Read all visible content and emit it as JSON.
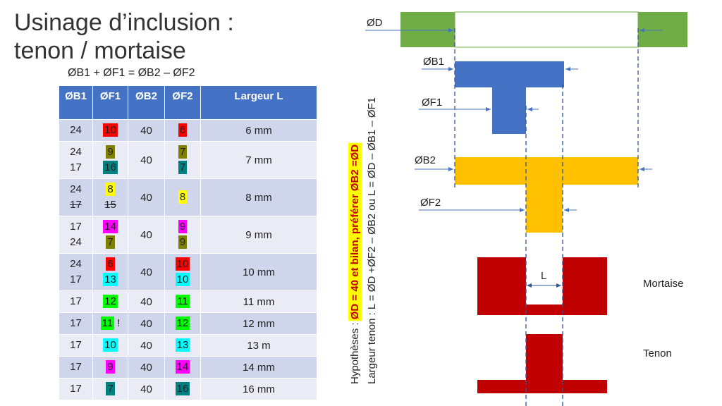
{
  "title": {
    "line1": "Usinage d’inclusion :",
    "line2": "tenon / mortaise"
  },
  "formula": "ØB1 + ØF1 = ØB2 – ØF2",
  "table": {
    "headers": [
      "ØB1",
      "ØF1",
      "ØB2",
      "ØF2",
      "Largeur L"
    ],
    "rows": [
      {
        "b1": [
          "24"
        ],
        "f1": [
          {
            "v": "10",
            "c": "#ff0000"
          }
        ],
        "b2": "40",
        "f2": [
          {
            "v": "6",
            "c": "#ff0000"
          }
        ],
        "l": "6 mm"
      },
      {
        "b1": [
          "24",
          "17"
        ],
        "f1": [
          {
            "v": "9",
            "c": "#808000"
          },
          {
            "v": "16",
            "c": "#008080"
          }
        ],
        "b2": "40",
        "f2": [
          {
            "v": "7",
            "c": "#808000"
          },
          {
            "v": "7",
            "c": "#008080"
          }
        ],
        "l": "7 mm"
      },
      {
        "b1": [
          "24",
          "17"
        ],
        "b1_strike": [
          false,
          true
        ],
        "f1": [
          {
            "v": "8",
            "c": "#ffff00"
          },
          {
            "v": "15",
            "c": "",
            "s": true
          }
        ],
        "b2": "40",
        "f2": [
          {
            "v": "8",
            "c": "#ffff00"
          }
        ],
        "l": "8 mm"
      },
      {
        "b1": [
          "17",
          "24"
        ],
        "f1": [
          {
            "v": "14",
            "c": "#ff00ff"
          },
          {
            "v": "7",
            "c": "#808000"
          }
        ],
        "b2": "40",
        "f2": [
          {
            "v": "9",
            "c": "#ff00ff"
          },
          {
            "v": "9",
            "c": "#808000"
          }
        ],
        "l": "9 mm"
      },
      {
        "b1": [
          "24",
          "17"
        ],
        "f1": [
          {
            "v": "6",
            "c": "#ff0000"
          },
          {
            "v": "13",
            "c": "#00ffff"
          }
        ],
        "b2": "40",
        "f2": [
          {
            "v": "10",
            "c": "#ff0000"
          },
          {
            "v": "10",
            "c": "#00ffff"
          }
        ],
        "l": "10 mm"
      },
      {
        "b1": [
          "17"
        ],
        "f1": [
          {
            "v": "12",
            "c": "#00ff00"
          }
        ],
        "b2": "40",
        "f2": [
          {
            "v": "11",
            "c": "#00ff00"
          }
        ],
        "l": "11 mm"
      },
      {
        "b1": [
          "17"
        ],
        "f1": [
          {
            "v": "11",
            "c": "#00ff00",
            "suffix": " !"
          }
        ],
        "b2": "40",
        "f2": [
          {
            "v": "12",
            "c": "#00ff00"
          }
        ],
        "l": "12 mm"
      },
      {
        "b1": [
          "17"
        ],
        "f1": [
          {
            "v": "10",
            "c": "#00ffff"
          }
        ],
        "b2": "40",
        "f2": [
          {
            "v": "13",
            "c": "#00ffff"
          }
        ],
        "l": "13 m"
      },
      {
        "b1": [
          "17"
        ],
        "f1": [
          {
            "v": "9",
            "c": "#ff00ff"
          }
        ],
        "b2": "40",
        "f2": [
          {
            "v": "14",
            "c": "#ff00ff"
          }
        ],
        "l": "14 mm"
      },
      {
        "b1": [
          "17"
        ],
        "f1": [
          {
            "v": "7",
            "c": "#008080"
          }
        ],
        "b2": "40",
        "f2": [
          {
            "v": "16",
            "c": "#008080"
          }
        ],
        "l": "16 mm"
      }
    ]
  },
  "hypothesis": {
    "prefix": "Hypothèses : ",
    "highlight": "ØD = 40 et bilan, préférer ØB2 =ØD",
    "highlight_color": "#ffff00",
    "highlight_text_color": "#c00000"
  },
  "formula_vertical": "Largeur tenon : L = ØD +ØF2 – ØB2 ou L = ØD – ØB1 – ØF1",
  "diagram": {
    "labels": {
      "d": "ØD",
      "b1": "ØB1",
      "f1": "ØF1",
      "b2": "ØB2",
      "f2": "ØF2",
      "l": "L"
    },
    "parts": {
      "mortaise": "Mortaise",
      "tenon": "Tenon"
    },
    "colors": {
      "d": "#70ad47",
      "b1": "#4472c4",
      "f1": "#4472c4",
      "b2": "#ffc000",
      "f2": "#ffc000",
      "part": "#c00000",
      "guide": "#2f5597"
    }
  }
}
